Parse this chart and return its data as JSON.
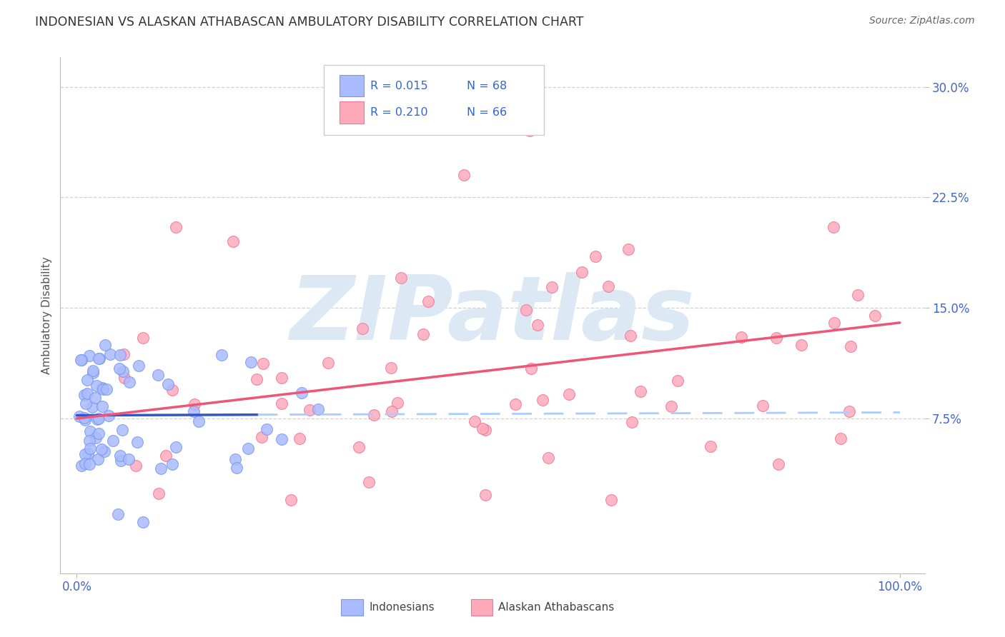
{
  "title": "INDONESIAN VS ALASKAN ATHABASCAN AMBULATORY DISABILITY CORRELATION CHART",
  "source": "Source: ZipAtlas.com",
  "ylabel": "Ambulatory Disability",
  "blue_color": "#aabbff",
  "blue_edge": "#7799ee",
  "pink_color": "#ffaabb",
  "pink_edge": "#ee7799",
  "trend_blue_solid": "#3355cc",
  "trend_blue_dashed": "#aaccff",
  "trend_pink": "#ee5577",
  "watermark_text": "ZIPatlas",
  "watermark_color": "#dde8f5",
  "ytick_vals": [
    0.075,
    0.15,
    0.225,
    0.3
  ],
  "ytick_labels": [
    "7.5%",
    "15.0%",
    "22.5%",
    "30.0%"
  ],
  "xtick_vals": [
    0.0,
    1.0
  ],
  "xtick_labels": [
    "0.0%",
    "100.0%"
  ],
  "tick_color": "#4466cc",
  "grid_color": "#cccccc",
  "background_color": "#ffffff",
  "title_color": "#333333",
  "source_color": "#666666",
  "ylabel_color": "#555555",
  "legend_edge_color": "#cccccc",
  "legend_text_color": "#3366cc"
}
